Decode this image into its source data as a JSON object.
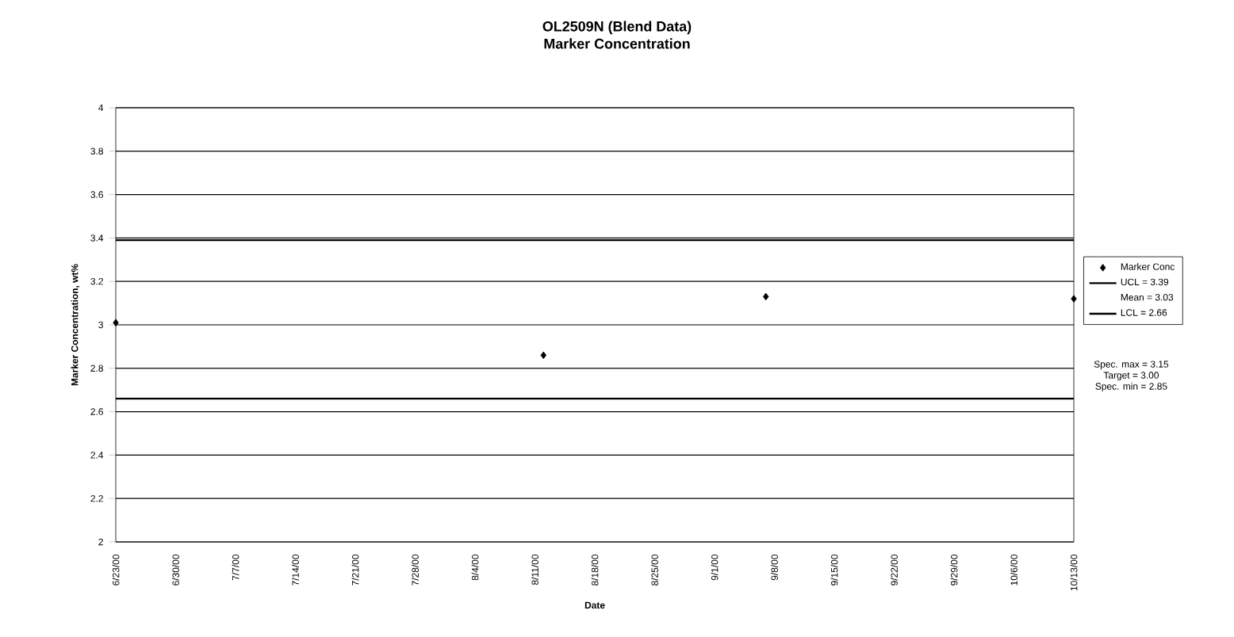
{
  "chart_data": {
    "type": "scatter",
    "title": "OL2509N (Blend Data)",
    "subtitle": "Marker Concentration",
    "xlabel": "Date",
    "ylabel": "Marker Concentration, wt%",
    "series": [
      {
        "name": "Marker Conc",
        "color": "#000000",
        "marker": "diamond",
        "x": [
          "2000-06-23",
          "2000-08-12",
          "2000-09-07",
          "2000-10-13"
        ],
        "values": [
          3.01,
          2.86,
          3.13,
          3.12
        ]
      },
      {
        "name": "UCL = 3.39",
        "type": "line",
        "color": "#000000",
        "marker": "none",
        "x": [
          "2000-06-23",
          "2000-10-13"
        ],
        "values": [
          3.39,
          3.39
        ]
      },
      {
        "name": "LCL = 2.66",
        "type": "line",
        "color": "#000000",
        "marker": "none",
        "x": [
          "2000-06-23",
          "2000-10-13"
        ],
        "values": [
          2.66,
          2.66
        ]
      }
    ],
    "annotations": [
      "Mean = 3.03",
      "Spec. max = 3.15",
      "Target = 3.00",
      "Spec. min = 2.85"
    ],
    "xlim": [
      "2000-06-23",
      "2000-10-13"
    ],
    "xticks": [
      {
        "value": "2000-06-23",
        "label": "6/23/00"
      },
      {
        "value": "2000-06-30",
        "label": "6/30/00"
      },
      {
        "value": "2000-07-07",
        "label": "7/7/00"
      },
      {
        "value": "2000-07-14",
        "label": "7/14/00"
      },
      {
        "value": "2000-07-21",
        "label": "7/21/00"
      },
      {
        "value": "2000-07-28",
        "label": "7/28/00"
      },
      {
        "value": "2000-08-04",
        "label": "8/4/00"
      },
      {
        "value": "2000-08-11",
        "label": "8/11/00"
      },
      {
        "value": "2000-08-18",
        "label": "8/18/00"
      },
      {
        "value": "2000-08-25",
        "label": "8/25/00"
      },
      {
        "value": "2000-09-01",
        "label": "9/1/00"
      },
      {
        "value": "2000-09-08",
        "label": "9/8/00"
      },
      {
        "value": "2000-09-15",
        "label": "9/15/00"
      },
      {
        "value": "2000-09-22",
        "label": "9/22/00"
      },
      {
        "value": "2000-09-29",
        "label": "9/29/00"
      },
      {
        "value": "2000-10-06",
        "label": "10/6/00"
      },
      {
        "value": "2000-10-13",
        "label": "10/13/00"
      }
    ],
    "ylim": [
      2,
      4
    ],
    "yticks": [
      2,
      2.2,
      2.4,
      2.6,
      2.8,
      3,
      3.2,
      3.4,
      3.6,
      3.8,
      4
    ],
    "grid": "y",
    "legend": "right"
  }
}
